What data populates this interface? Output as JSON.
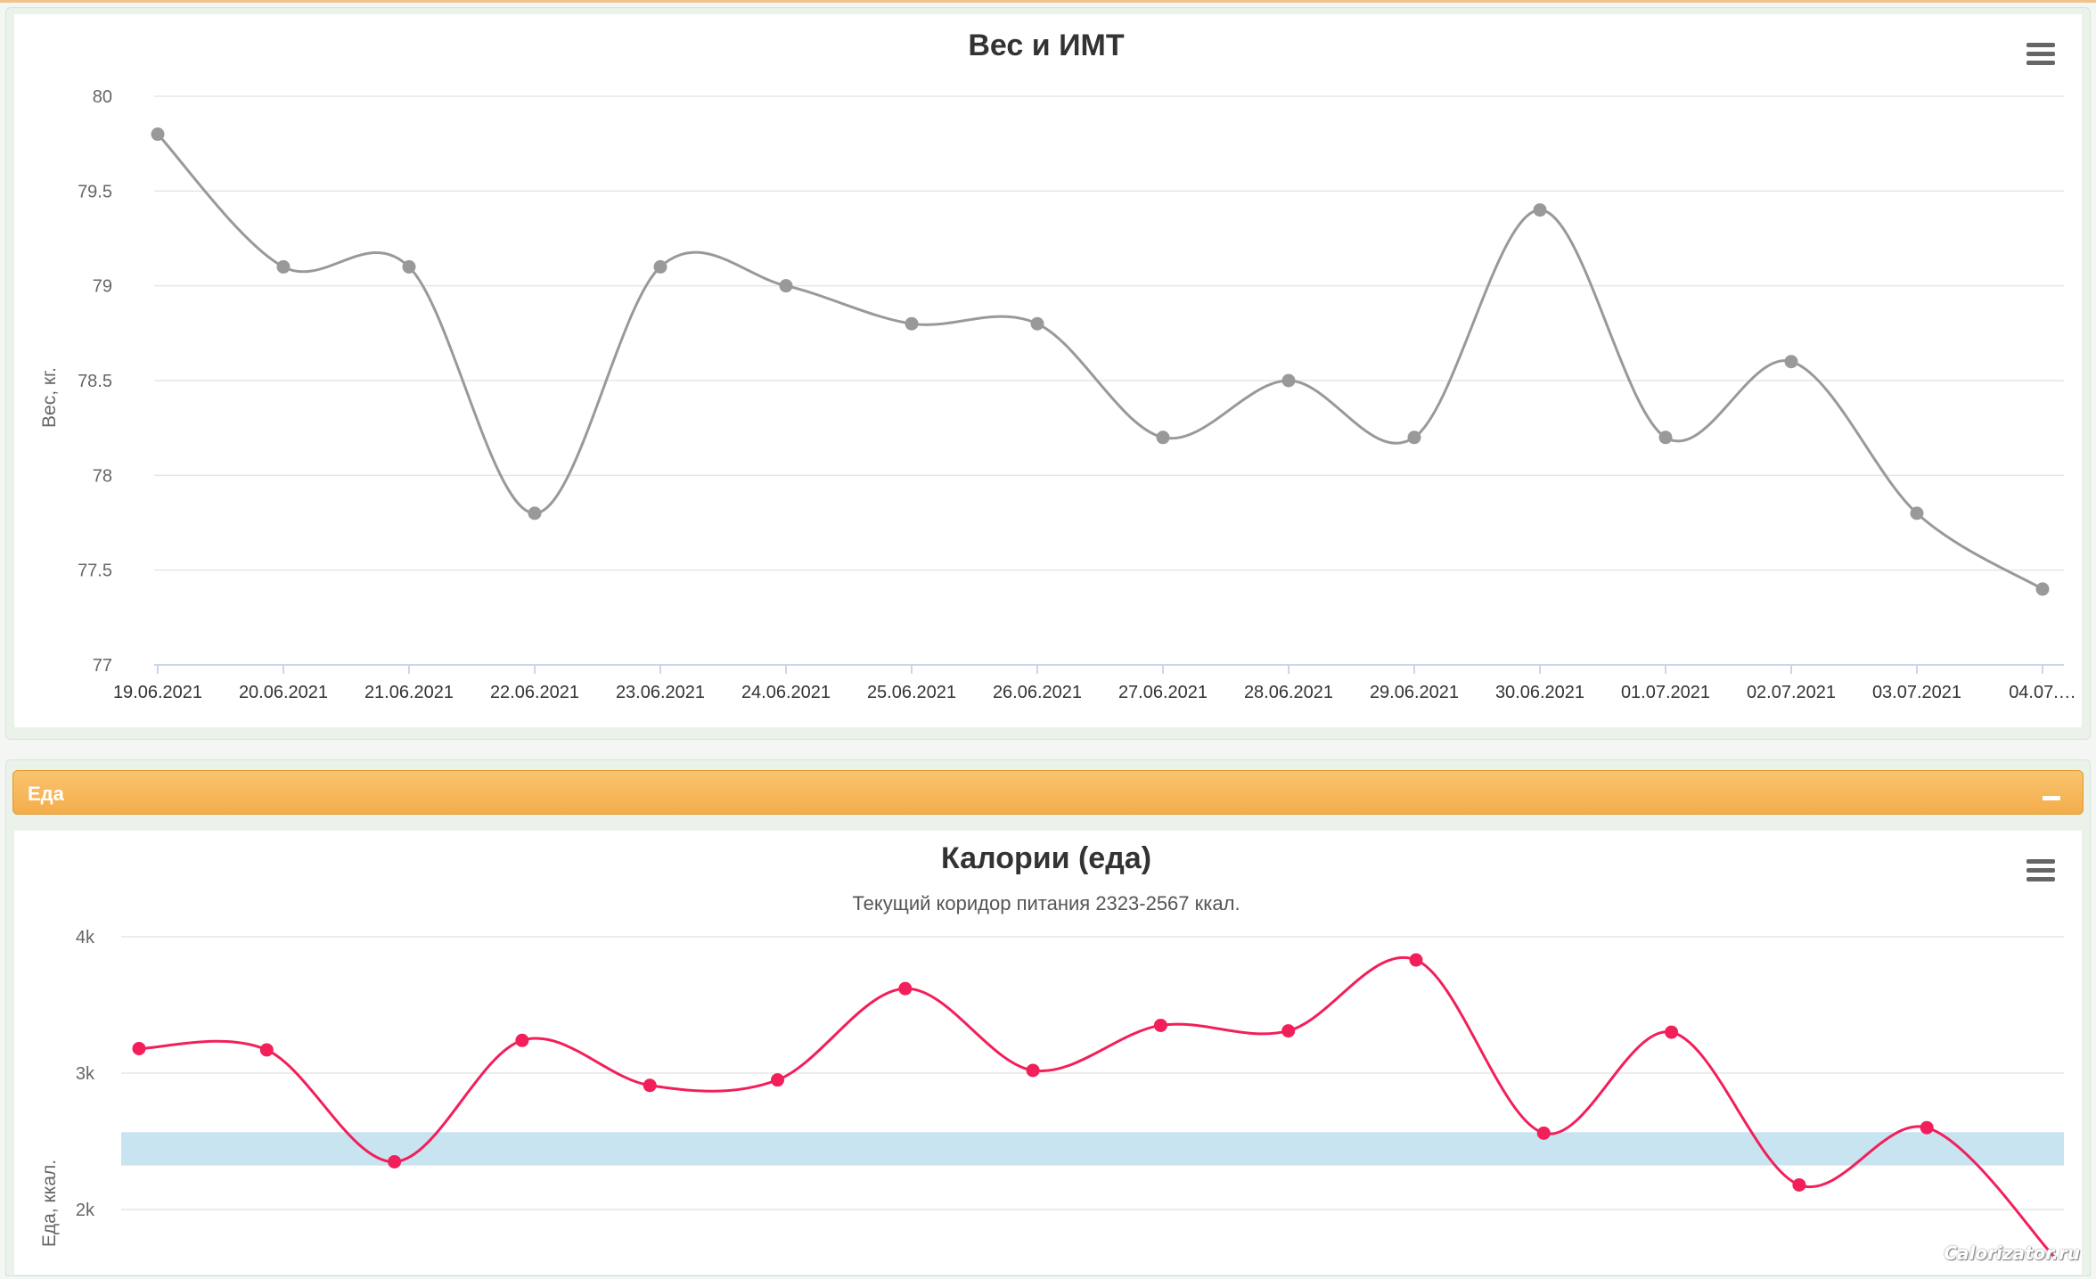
{
  "charts": {
    "weight": {
      "menu_icon": "hamburger-menu-icon",
      "chart_data": {
        "type": "line",
        "title": "Вес и ИМТ",
        "ylabel": "Вес, кг.",
        "xlabel": "",
        "categories": [
          "19.06.2021",
          "20.06.2021",
          "21.06.2021",
          "22.06.2021",
          "23.06.2021",
          "24.06.2021",
          "25.06.2021",
          "26.06.2021",
          "27.06.2021",
          "28.06.2021",
          "29.06.2021",
          "30.06.2021",
          "01.07.2021",
          "02.07.2021",
          "03.07.2021",
          "04.07.…"
        ],
        "series": [
          {
            "values": [
              79.8,
              79.1,
              79.1,
              77.8,
              79.1,
              79.0,
              78.8,
              78.8,
              78.2,
              78.5,
              78.2,
              79.4,
              78.2,
              78.6,
              77.8,
              77.4
            ],
            "color": "#999999"
          }
        ],
        "ylim": [
          77,
          80
        ],
        "yticks": [
          "77",
          "77.5",
          "78",
          "78.5",
          "79",
          "79.5",
          "80"
        ],
        "grid": true,
        "legend": "none"
      }
    },
    "food": {
      "menu_icon": "hamburger-menu-icon",
      "chart_data": {
        "type": "line",
        "title": "Калории (еда)",
        "subtitle": "Текущий коридор питания 2323-2567 ккал.",
        "ylabel": "Еда, ккал.",
        "xlabel": "",
        "series": [
          {
            "values": [
              3180,
              3170,
              2350,
              3240,
              2910,
              2950,
              3620,
              3020,
              3350,
              3310,
              3830,
              2560,
              3300,
              2180,
              2600,
              1650
            ],
            "color": "#f21f5a"
          }
        ],
        "plot_band": {
          "from": 2323,
          "to": 2567,
          "color": "#c8e4f0"
        },
        "ylim": [
          1500,
          4000
        ],
        "yticks": [
          "2k",
          "3k",
          "4k"
        ],
        "grid": true,
        "legend": "none"
      }
    }
  },
  "section": {
    "title": "Еда",
    "collapse_icon": "minus-icon"
  },
  "watermark": "Calorizator.ru"
}
